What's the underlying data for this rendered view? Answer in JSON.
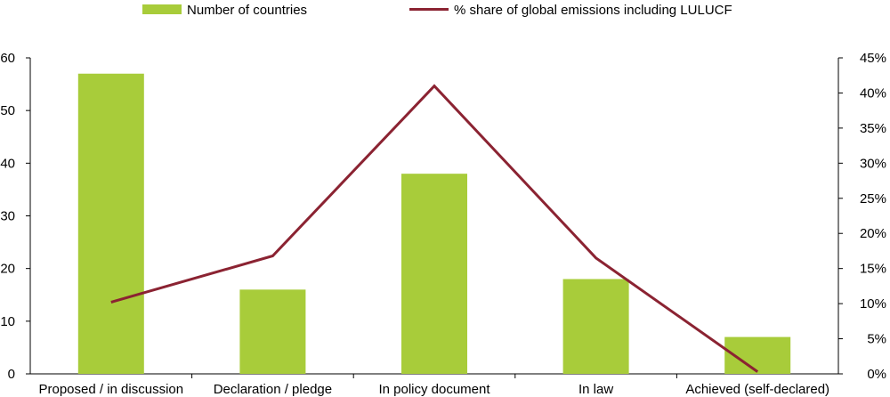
{
  "chart_data": {
    "type": "bar",
    "categories": [
      "Proposed / in discussion",
      "Declaration / pledge",
      "In policy document",
      "In law",
      "Achieved (self-declared)"
    ],
    "series": [
      {
        "name": "Number of countries",
        "type": "bar",
        "axis": "left",
        "color": "#a8cc3a",
        "values": [
          57,
          16,
          38,
          18,
          7
        ]
      },
      {
        "name": "% share of global emissions including LULUCF",
        "type": "line",
        "axis": "right",
        "color": "#8b2332",
        "values": [
          10.2,
          16.8,
          41.0,
          16.5,
          0.3
        ]
      }
    ],
    "y_left": {
      "lim": [
        0,
        60
      ],
      "ticks": [
        "0",
        "10",
        "20",
        "30",
        "40",
        "50",
        "60"
      ]
    },
    "y_right": {
      "lim": [
        0,
        45
      ],
      "ticks": [
        "0%",
        "5%",
        "10%",
        "15%",
        "20%",
        "25%",
        "30%",
        "35%",
        "40%",
        "45%"
      ]
    },
    "legend_position": "top",
    "grid": false
  }
}
